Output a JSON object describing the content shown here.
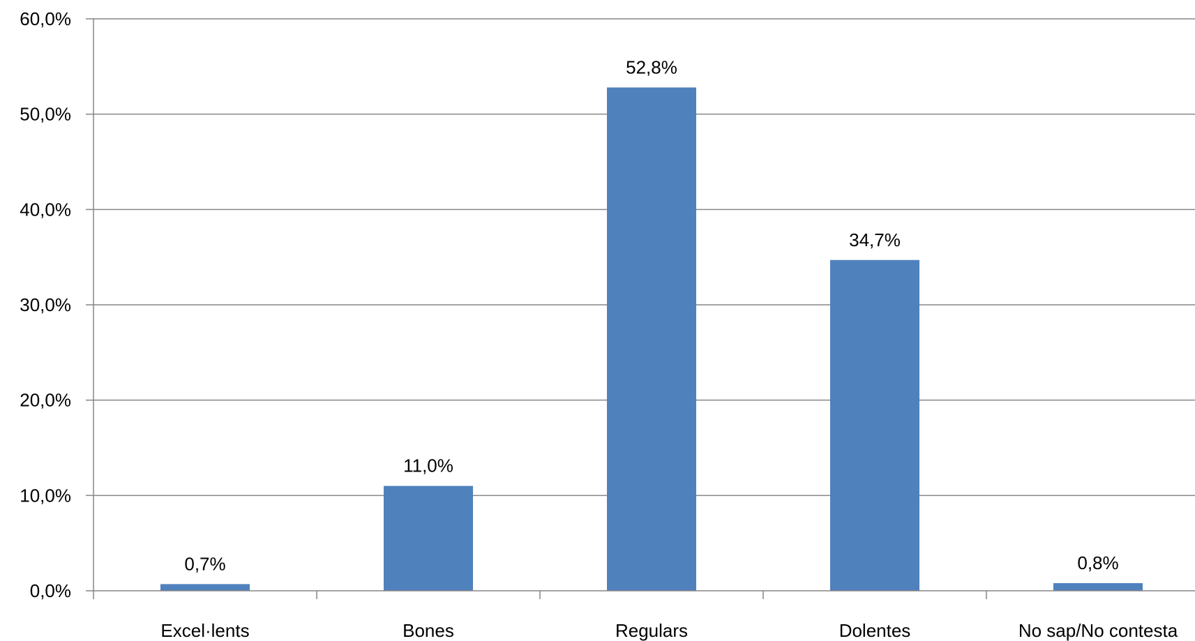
{
  "chart_data": {
    "type": "bar",
    "categories": [
      "Excel·lents",
      "Bones",
      "Regulars",
      "Dolentes",
      "No sap/No contesta"
    ],
    "values": [
      0.7,
      11.0,
      52.8,
      34.7,
      0.8
    ],
    "data_labels": [
      "0,7%",
      "11,0%",
      "52,8%",
      "34,7%",
      "0,8%"
    ],
    "title": "",
    "xlabel": "",
    "ylabel": "",
    "ylim": [
      0,
      60
    ],
    "yticks": [
      0,
      10,
      20,
      30,
      40,
      50,
      60
    ],
    "ytick_labels": [
      "0,0%",
      "10,0%",
      "20,0%",
      "30,0%",
      "40,0%",
      "50,0%",
      "60,0%"
    ],
    "grid": true,
    "legend": "none",
    "bar_color": "#4F81BD"
  }
}
